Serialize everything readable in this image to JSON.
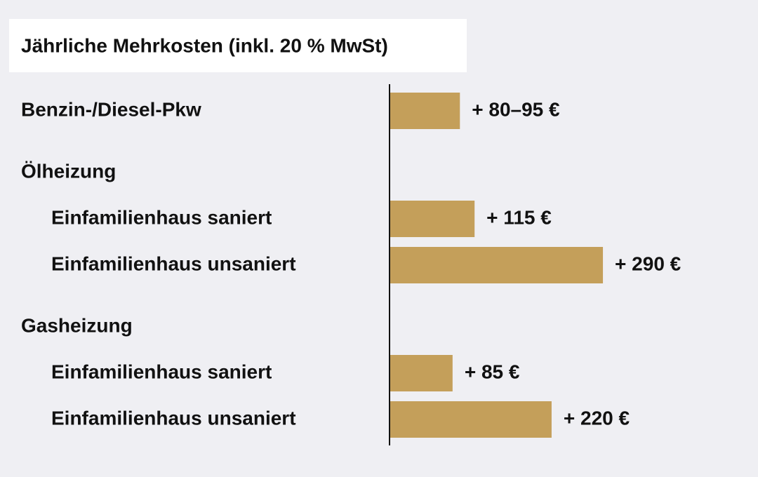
{
  "chart_data": {
    "type": "hbar",
    "title": "Jährliche Mehrkosten (inkl. 20 % MwSt)",
    "categories": [
      "Benzin-/Diesel-Pkw",
      "Ölheizung",
      "Einfamilienhaus saniert",
      "Einfamilienhaus unsaniert",
      "Gasheizung",
      "Einfamilienhaus saniert",
      "Einfamilienhaus unsaniert"
    ],
    "values": [
      95,
      null,
      115,
      290,
      null,
      85,
      220
    ],
    "value_labels": [
      "+ 80–95 €",
      null,
      "+ 115 €",
      "+ 290 €",
      null,
      "+ 85 €",
      "+ 220 €"
    ],
    "color": "#c49f5a"
  }
}
